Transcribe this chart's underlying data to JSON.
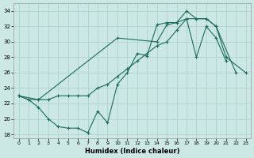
{
  "xlabel": "Humidex (Indice chaleur)",
  "background_color": "#cce8e4",
  "grid_color": "#aacfcb",
  "line_color": "#1a6b5a",
  "xlim": [
    -0.5,
    23.5
  ],
  "ylim": [
    17.5,
    35.0
  ],
  "xticks": [
    0,
    1,
    2,
    3,
    4,
    5,
    6,
    7,
    8,
    9,
    10,
    11,
    12,
    13,
    14,
    15,
    16,
    17,
    18,
    19,
    20,
    21,
    22,
    23
  ],
  "yticks": [
    18,
    20,
    22,
    24,
    26,
    28,
    30,
    32,
    34
  ],
  "line1_x": [
    0,
    1,
    2,
    3,
    4,
    5,
    6,
    7,
    8,
    9,
    10,
    11,
    12,
    13,
    14,
    15,
    16,
    17,
    18,
    19,
    20,
    21
  ],
  "line1_y": [
    23.0,
    22.5,
    21.5,
    20.0,
    19.0,
    18.8,
    18.8,
    18.2,
    21.0,
    19.5,
    24.5,
    26.0,
    28.5,
    28.2,
    32.2,
    32.5,
    32.5,
    33.0,
    28.0,
    32.0,
    30.5,
    27.5
  ],
  "line2_x": [
    0,
    1,
    2,
    3,
    4,
    5,
    6,
    7,
    8,
    9,
    10,
    11,
    12,
    13,
    14,
    15,
    16,
    17,
    18,
    19,
    20,
    22
  ],
  "line2_y": [
    23.0,
    22.5,
    22.5,
    22.5,
    23.0,
    23.0,
    23.0,
    23.0,
    24.0,
    24.5,
    25.5,
    26.5,
    27.5,
    28.5,
    29.5,
    30.0,
    31.5,
    33.0,
    33.0,
    33.0,
    32.0,
    26.0
  ],
  "line3_x": [
    0,
    2,
    10,
    14,
    15,
    16,
    17,
    18,
    19,
    20,
    21,
    23
  ],
  "line3_y": [
    23.0,
    22.5,
    30.5,
    30.0,
    32.2,
    32.5,
    34.0,
    33.0,
    33.0,
    32.0,
    28.0,
    26.0
  ]
}
